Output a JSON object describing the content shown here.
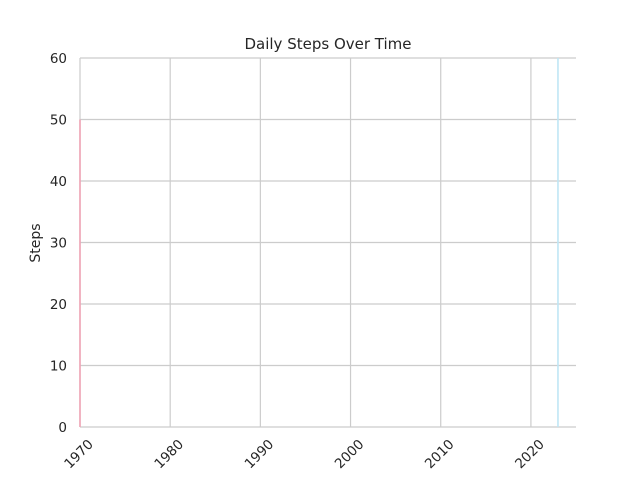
{
  "chart_data": {
    "type": "line",
    "title": "Daily Steps Over Time",
    "xlabel": "",
    "ylabel": "Steps",
    "xlim": [
      1970,
      2025
    ],
    "ylim": [
      0,
      60
    ],
    "xticks": [
      1970,
      1980,
      1990,
      2000,
      2010,
      2020
    ],
    "yticks": [
      0,
      10,
      20,
      30,
      40,
      50,
      60
    ],
    "grid": true,
    "series": [
      {
        "color": "#f0a3b5",
        "points": [
          {
            "x": 1970,
            "y": 0
          },
          {
            "x": 1970,
            "y": 50
          }
        ]
      },
      {
        "color": "#bfe6f5",
        "points": [
          {
            "x": 2023,
            "y": 0
          },
          {
            "x": 2023,
            "y": 60
          }
        ]
      }
    ]
  }
}
